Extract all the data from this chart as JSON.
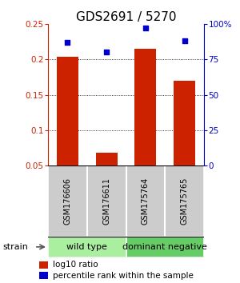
{
  "title": "GDS2691 / 5270",
  "samples": [
    "GSM176606",
    "GSM176611",
    "GSM175764",
    "GSM175765"
  ],
  "log10_ratio": [
    0.204,
    0.068,
    0.215,
    0.17
  ],
  "percentile_rank": [
    87,
    80,
    97,
    88
  ],
  "bar_color": "#cc2200",
  "dot_color": "#0000cc",
  "left_axis_color": "#cc2200",
  "right_axis_color": "#0000cc",
  "ylim_left": [
    0.05,
    0.25
  ],
  "ylim_right": [
    0,
    100
  ],
  "yticks_left": [
    0.05,
    0.1,
    0.15,
    0.2,
    0.25
  ],
  "yticks_right": [
    0,
    25,
    50,
    75,
    100
  ],
  "ytick_labels_left": [
    "0.05",
    "0.1",
    "0.15",
    "0.2",
    "0.25"
  ],
  "ytick_labels_right": [
    "0",
    "25",
    "50",
    "75",
    "100%"
  ],
  "gridline_vals": [
    0.1,
    0.15,
    0.2
  ],
  "group_colors": [
    "#aaeea0",
    "#66cc66"
  ],
  "group_labels": [
    "wild type",
    "dominant negative"
  ],
  "group_ranges": [
    [
      0,
      2
    ],
    [
      2,
      4
    ]
  ],
  "strain_label": "strain",
  "legend_red_label": "log10 ratio",
  "legend_blue_label": "percentile rank within the sample",
  "bar_width": 0.55,
  "title_fontsize": 11,
  "tick_fontsize": 7.5,
  "legend_fontsize": 7.5,
  "sample_fontsize": 7,
  "group_fontsize": 8,
  "strain_fontsize": 8,
  "sample_box_color": "#cccccc",
  "bar_bottom": 0.05
}
